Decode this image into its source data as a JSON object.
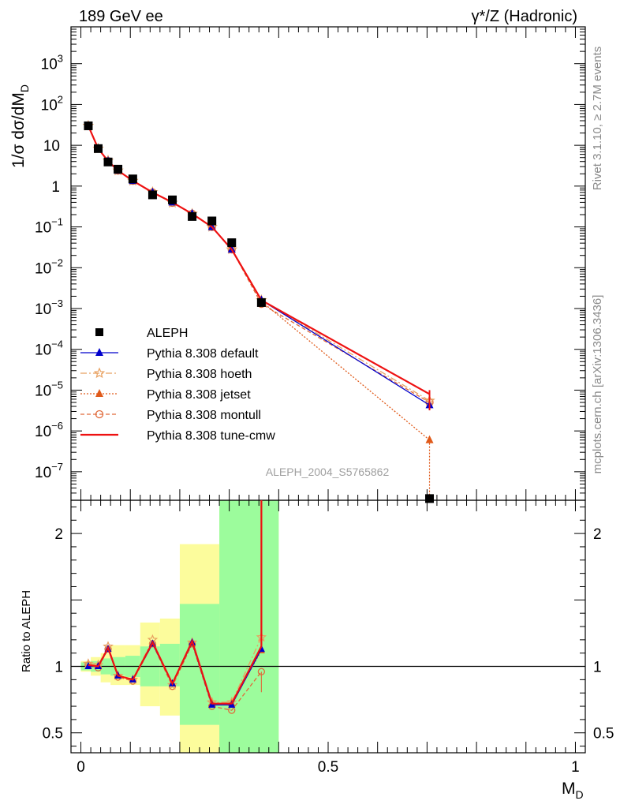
{
  "header": {
    "left_label": "189 GeV ee",
    "right_label": "γ*/Z (Hadronic)"
  },
  "side_labels": {
    "rivet": "Rivet 3.1.10, ≥ 2.7M events",
    "mcplots": "mcplots.cern.ch [arXiv:1306.3436]"
  },
  "watermark": "ALEPH_2004_S5765862",
  "colors": {
    "data": "#000000",
    "default": "#0000cc",
    "hoeth": "#e8a060",
    "jetset": "#e05a1a",
    "montull": "#e06a3a",
    "cmw": "#ee1111",
    "band_inner": "#9cfc9c",
    "band_outer": "#fcfc9c"
  },
  "chart_data": [
    {
      "type": "line",
      "panel": "main",
      "ylabel": "1/σ  dσ/dM",
      "ylabel_sub": "D",
      "yscale": "log",
      "xlim": [
        -0.02,
        1.02
      ],
      "ylim": [
        2e-08,
        8000
      ],
      "y_ticks": [
        {
          "v": 1e-07,
          "b": "10",
          "e": "−7"
        },
        {
          "v": 1e-06,
          "b": "10",
          "e": "−6"
        },
        {
          "v": 1e-05,
          "b": "10",
          "e": "−5"
        },
        {
          "v": 0.0001,
          "b": "10",
          "e": "−4"
        },
        {
          "v": 0.001,
          "b": "10",
          "e": "−3"
        },
        {
          "v": 0.01,
          "b": "10",
          "e": "−2"
        },
        {
          "v": 0.1,
          "b": "10",
          "e": "−1"
        },
        {
          "v": 1,
          "b": "1",
          "e": ""
        },
        {
          "v": 10,
          "b": "10",
          "e": ""
        },
        {
          "v": 100,
          "b": "10",
          "e": "2"
        },
        {
          "v": 1000,
          "b": "10",
          "e": "3"
        }
      ],
      "x": [
        0.015,
        0.035,
        0.055,
        0.075,
        0.105,
        0.145,
        0.185,
        0.225,
        0.265,
        0.305,
        0.365,
        0.705
      ],
      "series": [
        {
          "name": "ALEPH",
          "key": "data",
          "marker": "square",
          "values": [
            30,
            8.3,
            3.9,
            2.6,
            1.5,
            0.61,
            0.46,
            0.18,
            0.14,
            0.041,
            0.0014,
            2.2e-08
          ]
        },
        {
          "name": "Pythia 8.308 default",
          "key": "default",
          "marker": "triangle",
          "dash": "",
          "values": [
            30,
            8.3,
            4.1,
            2.4,
            1.35,
            0.7,
            0.4,
            0.21,
            0.1,
            0.028,
            0.0016,
            4.3e-06
          ]
        },
        {
          "name": "Pythia 8.308 hoeth",
          "key": "hoeth",
          "marker": "star",
          "dash": "8,3,2,3",
          "values": [
            30,
            8.3,
            4.2,
            2.4,
            1.35,
            0.71,
            0.39,
            0.21,
            0.1,
            0.028,
            0.0016,
            5.5e-06
          ]
        },
        {
          "name": "Pythia 8.308 jetset",
          "key": "jetset",
          "marker": "triangle",
          "dash": "2,2",
          "values": [
            30,
            8.3,
            4.1,
            2.4,
            1.35,
            0.7,
            0.4,
            0.21,
            0.1,
            0.028,
            0.0015,
            6e-07
          ]
        },
        {
          "name": "Pythia 8.308 montull",
          "key": "montull",
          "marker": "circle",
          "dash": "5,3",
          "values": [
            30,
            8.3,
            4.1,
            2.4,
            1.35,
            0.7,
            0.39,
            0.21,
            0.1,
            0.028,
            0.0013,
            5e-06
          ]
        },
        {
          "name": "Pythia 8.308 tune-cmw",
          "key": "cmw",
          "marker": "none",
          "dash": "",
          "values": [
            30,
            8.3,
            4.1,
            2.4,
            1.35,
            0.7,
            0.4,
            0.21,
            0.1,
            0.028,
            0.0016,
            8e-06
          ]
        }
      ],
      "legend_position": "center-left"
    },
    {
      "type": "line",
      "panel": "ratio",
      "ylabel": "Ratio to ALEPH",
      "xlabel": "M",
      "xlabel_sub": "D",
      "xlim": [
        -0.02,
        1.02
      ],
      "ylim": [
        0.35,
        2.25
      ],
      "x_ticks": [
        {
          "v": 0,
          "label": "0"
        },
        {
          "v": 0.5,
          "label": "0.5"
        },
        {
          "v": 1,
          "label": "1"
        }
      ],
      "y_ticks": [
        {
          "v": 0.5,
          "label": "0.5"
        },
        {
          "v": 1,
          "label": "1"
        },
        {
          "v": 2,
          "label": "2"
        }
      ],
      "reference_line": 1,
      "bands": [
        {
          "x0": 0.0,
          "x1": 0.02,
          "inner": [
            0.97,
            1.03
          ],
          "outer": [
            0.96,
            1.04
          ]
        },
        {
          "x0": 0.02,
          "x1": 0.04,
          "inner": [
            0.96,
            1.04
          ],
          "outer": [
            0.93,
            1.07
          ]
        },
        {
          "x0": 0.04,
          "x1": 0.06,
          "inner": [
            0.94,
            1.06
          ],
          "outer": [
            0.88,
            1.1
          ]
        },
        {
          "x0": 0.06,
          "x1": 0.09,
          "inner": [
            0.93,
            1.07
          ],
          "outer": [
            0.86,
            1.16
          ]
        },
        {
          "x0": 0.09,
          "x1": 0.12,
          "inner": [
            0.92,
            1.08
          ],
          "outer": [
            0.86,
            1.16
          ]
        },
        {
          "x0": 0.12,
          "x1": 0.16,
          "inner": [
            0.85,
            1.15
          ],
          "outer": [
            0.7,
            1.33
          ]
        },
        {
          "x0": 0.16,
          "x1": 0.2,
          "inner": [
            0.85,
            1.17
          ],
          "outer": [
            0.63,
            1.36
          ]
        },
        {
          "x0": 0.2,
          "x1": 0.28,
          "inner": [
            0.56,
            1.47
          ],
          "outer": [
            0.3,
            1.92
          ]
        },
        {
          "x0": 0.28,
          "x1": 0.4,
          "inner": [
            0.3,
            2.3
          ],
          "outer": [
            0.3,
            2.3
          ]
        }
      ],
      "x": [
        0.015,
        0.035,
        0.055,
        0.075,
        0.105,
        0.145,
        0.185,
        0.225,
        0.265,
        0.305,
        0.365
      ],
      "series": [
        {
          "name": "Pythia 8.308 default",
          "key": "default",
          "marker": "triangle",
          "dash": "",
          "values": [
            1.0,
            1.0,
            1.13,
            0.93,
            0.9,
            1.17,
            0.87,
            1.18,
            0.71,
            0.71,
            1.13
          ]
        },
        {
          "name": "Pythia 8.308 hoeth",
          "key": "hoeth",
          "marker": "star",
          "dash": "8,3,2,3",
          "values": [
            1.02,
            1.01,
            1.15,
            0.93,
            0.9,
            1.2,
            0.86,
            1.18,
            0.73,
            0.73,
            1.22
          ]
        },
        {
          "name": "Pythia 8.308 jetset",
          "key": "jetset",
          "marker": "triangle",
          "dash": "2,2",
          "values": [
            1.0,
            1.0,
            1.13,
            0.93,
            0.9,
            1.17,
            0.87,
            1.17,
            0.72,
            0.72,
            1.12
          ]
        },
        {
          "name": "Pythia 8.308 montull",
          "key": "montull",
          "marker": "circle",
          "dash": "5,3",
          "values": [
            1.01,
            0.99,
            1.13,
            0.92,
            0.89,
            1.17,
            0.85,
            1.17,
            0.7,
            0.67,
            0.96
          ]
        },
        {
          "name": "Pythia 8.308 tune-cmw",
          "key": "cmw",
          "marker": "none",
          "dash": "",
          "values": [
            1.01,
            1.0,
            1.14,
            0.93,
            0.9,
            1.18,
            0.87,
            1.19,
            0.72,
            0.72,
            1.15
          ]
        }
      ]
    }
  ]
}
